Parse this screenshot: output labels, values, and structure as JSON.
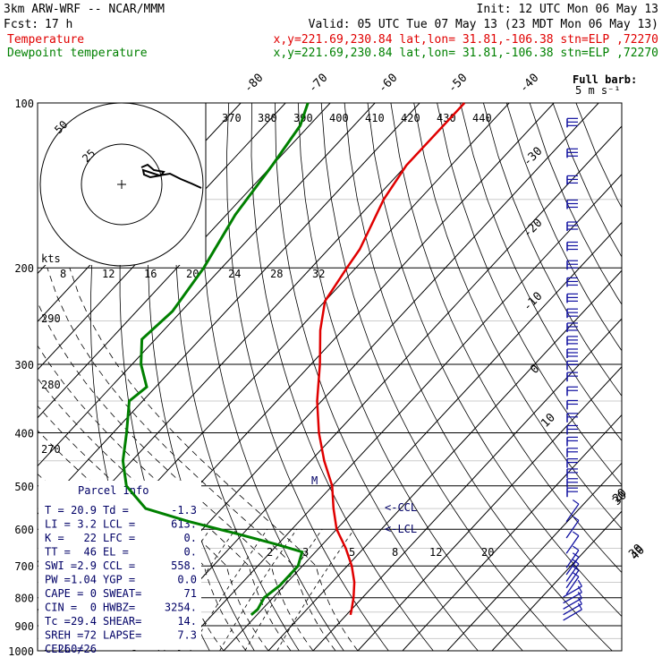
{
  "header": {
    "model": "3km ARW-WRF -- NCAR/MMM",
    "init": "Init: 12 UTC Mon 06 May 13",
    "fcst_label": "Fcst:",
    "fcst_value": "17 h",
    "valid": "Valid: 05 UTC Tue 07 May 13 (23 MDT Mon 06 May 13)",
    "temp_label": "Temperature",
    "temp_loc": "x,y=221.69,230.84   lat,lon= 31.81,-106.38   stn=ELP ,72270",
    "dew_label": "Dewpoint temperature",
    "dew_loc": "x,y=221.69,230.84   lat,lon= 31.81,-106.38   stn=ELP ,72270"
  },
  "colors": {
    "temperature": "#e00000",
    "dewpoint": "#008000",
    "barbs": "#1010a0",
    "panel": "#000066"
  },
  "hodograph": {
    "ring_labels": [
      "50",
      "25"
    ],
    "units": "kts"
  },
  "theta_labels": [
    "370",
    "380",
    "390",
    "400",
    "410",
    "420",
    "430",
    "440"
  ],
  "mixing_ratio_top_labels": [
    "8",
    "12",
    "16",
    "20",
    "24",
    "28",
    "32"
  ],
  "mixing_ratio_bottom_labels": [
    "2",
    "3",
    "5",
    "8",
    "12",
    "20"
  ],
  "theta_side_labels": [
    "290",
    "280",
    "270"
  ],
  "barb_legend": {
    "title": "Full barb:",
    "value": "5 m s⁻¹"
  },
  "wind_speed_markers": [
    "30",
    "40"
  ],
  "lcl_labels": [
    "<-CCL",
    "<-LCL"
  ],
  "m_marker": "M",
  "parcel": {
    "title": "Parcel Info",
    "rows": [
      [
        "T  =",
        "20.9",
        "Td =",
        "-1.3"
      ],
      [
        "LI =",
        "3.2",
        "LCL =",
        "613."
      ],
      [
        "K  =",
        "22",
        "LFC =",
        "0."
      ],
      [
        "TT =",
        "46",
        "EL  =",
        "0."
      ],
      [
        "SWI =",
        "2.9",
        "CCL =",
        "558."
      ],
      [
        "PW =",
        "1.04",
        "YGP =",
        "0.0"
      ],
      [
        "CAPE =",
        "0",
        "SWEAT=",
        "71"
      ],
      [
        "CIN =",
        "0",
        "HWBZ=",
        "3254."
      ],
      [
        "Tc =",
        "29.4",
        "SHEAR=",
        "14."
      ],
      [
        "SREH =",
        "72",
        "LAPSE=",
        "7.3"
      ],
      [
        "CELL =",
        "260/26",
        "",
        ""
      ]
    ]
  },
  "chart_data": {
    "type": "skew-T log-p",
    "y_axis": {
      "label": "Pressure (hPa)",
      "scale": "log",
      "ticks": [
        100,
        200,
        300,
        400,
        500,
        600,
        700,
        800,
        900,
        1000
      ]
    },
    "temperature_axis_labels": [
      "-80",
      "-70",
      "-60",
      "-50",
      "-40",
      "-30",
      "-20",
      "-10",
      "0",
      "10",
      "20",
      "30",
      "40"
    ],
    "series": [
      {
        "name": "Temperature",
        "color": "#e00000",
        "points": [
          [
            100,
            -60
          ],
          [
            130,
            -60
          ],
          [
            150,
            -58
          ],
          [
            170,
            -55
          ],
          [
            185,
            -53
          ],
          [
            200,
            -52
          ],
          [
            230,
            -50
          ],
          [
            260,
            -45
          ],
          [
            300,
            -38
          ],
          [
            350,
            -31
          ],
          [
            400,
            -24
          ],
          [
            450,
            -17
          ],
          [
            500,
            -10
          ],
          [
            550,
            -5
          ],
          [
            600,
            0
          ],
          [
            650,
            6
          ],
          [
            700,
            11
          ],
          [
            750,
            15
          ],
          [
            800,
            18
          ],
          [
            840,
            20
          ],
          [
            860,
            20.9
          ]
        ]
      },
      {
        "name": "Dewpoint temperature",
        "color": "#008000",
        "points": [
          [
            100,
            -95
          ],
          [
            110,
            -92
          ],
          [
            130,
            -90
          ],
          [
            160,
            -88
          ],
          [
            200,
            -84
          ],
          [
            240,
            -82
          ],
          [
            270,
            -83
          ],
          [
            300,
            -78
          ],
          [
            330,
            -72
          ],
          [
            350,
            -73
          ],
          [
            400,
            -67
          ],
          [
            450,
            -62
          ],
          [
            500,
            -56
          ],
          [
            550,
            -47
          ],
          [
            580,
            -35
          ],
          [
            610,
            -22
          ],
          [
            640,
            -10
          ],
          [
            660,
            -3
          ],
          [
            700,
            -1.0
          ],
          [
            760,
            -1.0
          ],
          [
            800,
            -2.0
          ],
          [
            840,
            -1.0
          ],
          [
            860,
            -1.3
          ]
        ]
      }
    ],
    "grid": true
  }
}
